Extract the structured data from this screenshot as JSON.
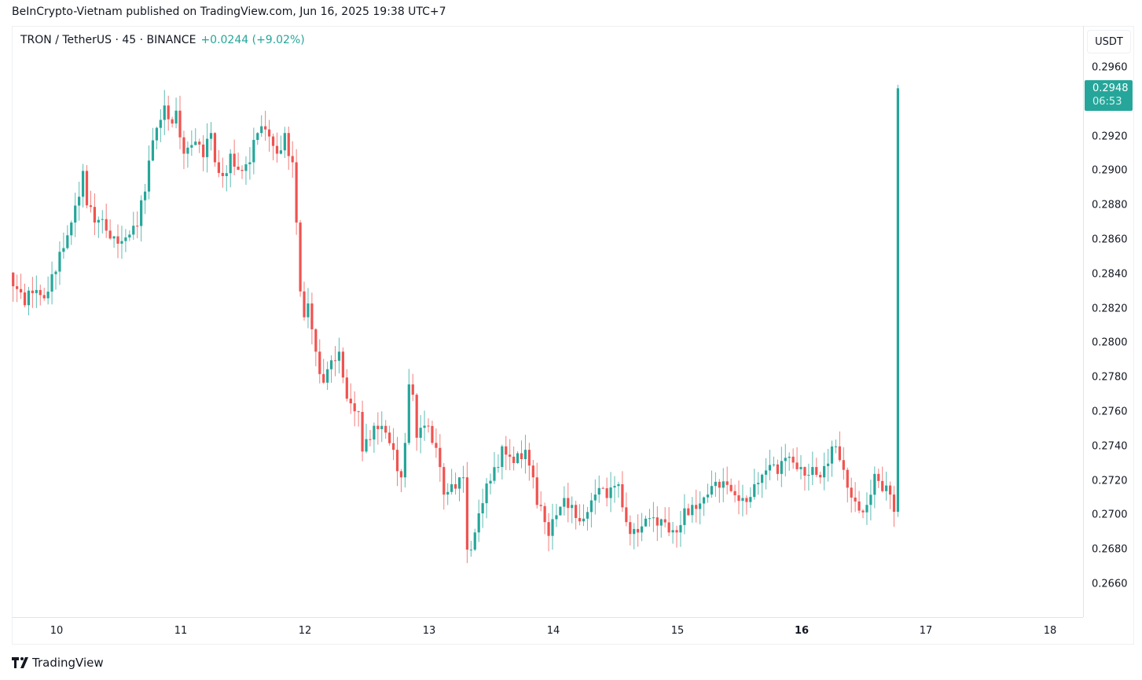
{
  "publisher_line": "BeInCrypto-Vietnam published on TradingView.com, Jun 16, 2025 19:38 UTC+7",
  "legend": {
    "symbol": "TRON / TetherUS · 45 · BINANCE",
    "change": "+0.0244 (+9.02%)"
  },
  "footer": {
    "brand": "TradingView"
  },
  "colors": {
    "up": "#26a69a",
    "down": "#ef5350"
  },
  "chart_data": {
    "type": "candlestick",
    "title": "TRON / TetherUS · 45 · BINANCE",
    "currency": "USDT",
    "ylim": [
      0.2645,
      0.2978
    ],
    "y_ticks": [
      "0.2960",
      "0.2920",
      "0.2900",
      "0.2880",
      "0.2860",
      "0.2840",
      "0.2820",
      "0.2800",
      "0.2780",
      "0.2760",
      "0.2740",
      "0.2720",
      "0.2700",
      "0.2680",
      "0.2660"
    ],
    "x_ticks": [
      {
        "label": "10",
        "day": 10,
        "bold": false
      },
      {
        "label": "11",
        "day": 11,
        "bold": false
      },
      {
        "label": "12",
        "day": 12,
        "bold": false
      },
      {
        "label": "13",
        "day": 13,
        "bold": false
      },
      {
        "label": "14",
        "day": 14,
        "bold": false
      },
      {
        "label": "15",
        "day": 15,
        "bold": false
      },
      {
        "label": "16",
        "day": 16,
        "bold": true
      },
      {
        "label": "17",
        "day": 17,
        "bold": false
      },
      {
        "label": "18",
        "day": 18,
        "bold": false
      }
    ],
    "candles_per_day": 32,
    "first_candle_day": 9.65,
    "close_keyframes": [
      [
        0,
        0.2833
      ],
      [
        3,
        0.2822
      ],
      [
        5,
        0.2829
      ],
      [
        8,
        0.2826
      ],
      [
        10,
        0.284
      ],
      [
        12,
        0.2853
      ],
      [
        15,
        0.287
      ],
      [
        17,
        0.2885
      ],
      [
        18,
        0.29
      ],
      [
        19,
        0.288
      ],
      [
        21,
        0.287
      ],
      [
        23,
        0.2872
      ],
      [
        26,
        0.2862
      ],
      [
        30,
        0.2863
      ],
      [
        32,
        0.2868
      ],
      [
        34,
        0.2888
      ],
      [
        35,
        0.2906
      ],
      [
        37,
        0.2925
      ],
      [
        39,
        0.2938
      ],
      [
        40,
        0.293
      ],
      [
        42,
        0.2935
      ],
      [
        44,
        0.291
      ],
      [
        46,
        0.2915
      ],
      [
        49,
        0.2908
      ],
      [
        51,
        0.2922
      ],
      [
        52,
        0.2905
      ],
      [
        54,
        0.2897
      ],
      [
        56,
        0.291
      ],
      [
        59,
        0.29
      ],
      [
        61,
        0.2905
      ],
      [
        63,
        0.2922
      ],
      [
        66,
        0.292
      ],
      [
        68,
        0.291
      ],
      [
        70,
        0.2922
      ],
      [
        72,
        0.2905
      ],
      [
        73,
        0.287
      ],
      [
        74,
        0.283
      ],
      [
        75,
        0.2815
      ],
      [
        76,
        0.2823
      ],
      [
        77,
        0.2808
      ],
      [
        78,
        0.2795
      ],
      [
        79,
        0.2782
      ],
      [
        80,
        0.2777
      ],
      [
        82,
        0.279
      ],
      [
        84,
        0.2795
      ],
      [
        85,
        0.278
      ],
      [
        87,
        0.2765
      ],
      [
        89,
        0.276
      ],
      [
        90,
        0.2737
      ],
      [
        92,
        0.2744
      ],
      [
        94,
        0.275
      ],
      [
        96,
        0.2748
      ],
      [
        98,
        0.2738
      ],
      [
        100,
        0.2722
      ],
      [
        101,
        0.2742
      ],
      [
        102,
        0.2776
      ],
      [
        103,
        0.277
      ],
      [
        104,
        0.2745
      ],
      [
        106,
        0.2752
      ],
      [
        108,
        0.2742
      ],
      [
        110,
        0.2728
      ],
      [
        111,
        0.2712
      ],
      [
        113,
        0.2718
      ],
      [
        115,
        0.2722
      ],
      [
        116,
        0.2722
      ],
      [
        117,
        0.268
      ],
      [
        118,
        0.268
      ],
      [
        119,
        0.269
      ],
      [
        121,
        0.2707
      ],
      [
        123,
        0.272
      ],
      [
        125,
        0.2728
      ],
      [
        126,
        0.274
      ],
      [
        128,
        0.2734
      ],
      [
        130,
        0.2736
      ],
      [
        132,
        0.2738
      ],
      [
        134,
        0.2722
      ],
      [
        135,
        0.2706
      ],
      [
        137,
        0.2696
      ],
      [
        138,
        0.2688
      ],
      [
        140,
        0.27
      ],
      [
        142,
        0.271
      ],
      [
        144,
        0.2706
      ],
      [
        147,
        0.2698
      ],
      [
        150,
        0.2712
      ],
      [
        153,
        0.271
      ],
      [
        156,
        0.2718
      ],
      [
        158,
        0.2696
      ],
      [
        160,
        0.2692
      ],
      [
        163,
        0.2698
      ],
      [
        166,
        0.2694
      ],
      [
        169,
        0.269
      ],
      [
        171,
        0.269
      ],
      [
        173,
        0.2704
      ],
      [
        175,
        0.2706
      ],
      [
        179,
        0.2712
      ],
      [
        182,
        0.2716
      ],
      [
        185,
        0.2714
      ],
      [
        188,
        0.271
      ],
      [
        191,
        0.2718
      ],
      [
        194,
        0.2726
      ],
      [
        197,
        0.2724
      ],
      [
        200,
        0.2734
      ],
      [
        203,
        0.2728
      ],
      [
        206,
        0.2728
      ],
      [
        208,
        0.2722
      ],
      [
        210,
        0.273
      ],
      [
        212,
        0.274
      ],
      [
        213,
        0.2732
      ],
      [
        215,
        0.2716
      ],
      [
        217,
        0.2708
      ],
      [
        220,
        0.2706
      ],
      [
        222,
        0.2724
      ],
      [
        224,
        0.2714
      ],
      [
        226,
        0.2712
      ],
      [
        227,
        0.2702
      ]
    ],
    "last_candle": {
      "open": 0.2702,
      "high": 0.295,
      "low": 0.2699,
      "close": 0.2948
    },
    "last_price": "0.2948",
    "countdown": "06:53"
  }
}
